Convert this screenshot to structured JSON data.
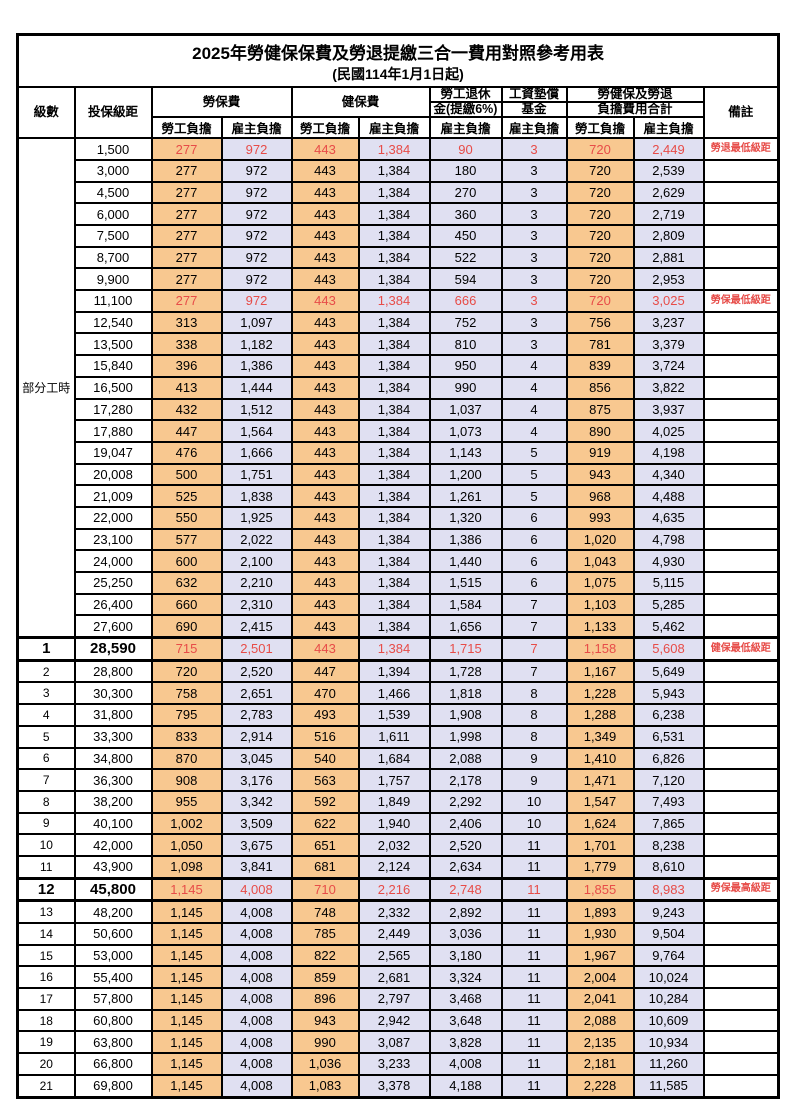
{
  "title": "2025年勞健保保費及勞退提繳三合一費用對照參考用表",
  "subtitle": "(民國114年1月1日起)",
  "header": {
    "level": "級數",
    "bracket": "投保級距",
    "labor_ins": "勞保費",
    "health_ins": "健保費",
    "pension_line1": "勞工退休",
    "pension_line2": "金(提繳6%)",
    "wage_fund_line1": "工資墊償",
    "wage_fund_line2": "基金",
    "total_line1": "勞健保及勞退",
    "total_line2": "負擔費用合計",
    "note": "備註",
    "employee": "勞工負擔",
    "employer": "雇主負擔"
  },
  "part_time_label": "部分工時",
  "colors": {
    "employee_bg": "#f8c890",
    "employer_bg": "#e0e0f2",
    "highlight_red": "#e74c48",
    "border": "#000000"
  },
  "row_fields": [
    "level",
    "bracket",
    "labor_employee",
    "labor_employer",
    "health_employee",
    "health_employer",
    "pension_employer",
    "fund_employer",
    "total_employee",
    "total_employer",
    "note",
    "flag"
  ],
  "rows": [
    [
      "",
      "1,500",
      "277",
      "972",
      "443",
      "1,384",
      "90",
      "3",
      "720",
      "2,449",
      "勞退最低級距",
      "red"
    ],
    [
      "",
      "3,000",
      "277",
      "972",
      "443",
      "1,384",
      "180",
      "3",
      "720",
      "2,539",
      "",
      ""
    ],
    [
      "",
      "4,500",
      "277",
      "972",
      "443",
      "1,384",
      "270",
      "3",
      "720",
      "2,629",
      "",
      ""
    ],
    [
      "",
      "6,000",
      "277",
      "972",
      "443",
      "1,384",
      "360",
      "3",
      "720",
      "2,719",
      "",
      ""
    ],
    [
      "",
      "7,500",
      "277",
      "972",
      "443",
      "1,384",
      "450",
      "3",
      "720",
      "2,809",
      "",
      ""
    ],
    [
      "",
      "8,700",
      "277",
      "972",
      "443",
      "1,384",
      "522",
      "3",
      "720",
      "2,881",
      "",
      ""
    ],
    [
      "",
      "9,900",
      "277",
      "972",
      "443",
      "1,384",
      "594",
      "3",
      "720",
      "2,953",
      "",
      ""
    ],
    [
      "",
      "11,100",
      "277",
      "972",
      "443",
      "1,384",
      "666",
      "3",
      "720",
      "3,025",
      "勞保最低級距",
      "red"
    ],
    [
      "",
      "12,540",
      "313",
      "1,097",
      "443",
      "1,384",
      "752",
      "3",
      "756",
      "3,237",
      "",
      ""
    ],
    [
      "",
      "13,500",
      "338",
      "1,182",
      "443",
      "1,384",
      "810",
      "3",
      "781",
      "3,379",
      "",
      ""
    ],
    [
      "",
      "15,840",
      "396",
      "1,386",
      "443",
      "1,384",
      "950",
      "4",
      "839",
      "3,724",
      "",
      ""
    ],
    [
      "",
      "16,500",
      "413",
      "1,444",
      "443",
      "1,384",
      "990",
      "4",
      "856",
      "3,822",
      "",
      ""
    ],
    [
      "",
      "17,280",
      "432",
      "1,512",
      "443",
      "1,384",
      "1,037",
      "4",
      "875",
      "3,937",
      "",
      ""
    ],
    [
      "",
      "17,880",
      "447",
      "1,564",
      "443",
      "1,384",
      "1,073",
      "4",
      "890",
      "4,025",
      "",
      ""
    ],
    [
      "",
      "19,047",
      "476",
      "1,666",
      "443",
      "1,384",
      "1,143",
      "5",
      "919",
      "4,198",
      "",
      ""
    ],
    [
      "",
      "20,008",
      "500",
      "1,751",
      "443",
      "1,384",
      "1,200",
      "5",
      "943",
      "4,340",
      "",
      ""
    ],
    [
      "",
      "21,009",
      "525",
      "1,838",
      "443",
      "1,384",
      "1,261",
      "5",
      "968",
      "4,488",
      "",
      ""
    ],
    [
      "",
      "22,000",
      "550",
      "1,925",
      "443",
      "1,384",
      "1,320",
      "6",
      "993",
      "4,635",
      "",
      ""
    ],
    [
      "",
      "23,100",
      "577",
      "2,022",
      "443",
      "1,384",
      "1,386",
      "6",
      "1,020",
      "4,798",
      "",
      ""
    ],
    [
      "",
      "24,000",
      "600",
      "2,100",
      "443",
      "1,384",
      "1,440",
      "6",
      "1,043",
      "4,930",
      "",
      ""
    ],
    [
      "",
      "25,250",
      "632",
      "2,210",
      "443",
      "1,384",
      "1,515",
      "6",
      "1,075",
      "5,115",
      "",
      ""
    ],
    [
      "",
      "26,400",
      "660",
      "2,310",
      "443",
      "1,384",
      "1,584",
      "7",
      "1,103",
      "5,285",
      "",
      ""
    ],
    [
      "",
      "27,600",
      "690",
      "2,415",
      "443",
      "1,384",
      "1,656",
      "7",
      "1,133",
      "5,462",
      "",
      ""
    ],
    [
      "1",
      "28,590",
      "715",
      "2,501",
      "443",
      "1,384",
      "1,715",
      "7",
      "1,158",
      "5,608",
      "健保最低級距",
      "red strong"
    ],
    [
      "2",
      "28,800",
      "720",
      "2,520",
      "447",
      "1,394",
      "1,728",
      "7",
      "1,167",
      "5,649",
      "",
      ""
    ],
    [
      "3",
      "30,300",
      "758",
      "2,651",
      "470",
      "1,466",
      "1,818",
      "8",
      "1,228",
      "5,943",
      "",
      ""
    ],
    [
      "4",
      "31,800",
      "795",
      "2,783",
      "493",
      "1,539",
      "1,908",
      "8",
      "1,288",
      "6,238",
      "",
      ""
    ],
    [
      "5",
      "33,300",
      "833",
      "2,914",
      "516",
      "1,611",
      "1,998",
      "8",
      "1,349",
      "6,531",
      "",
      ""
    ],
    [
      "6",
      "34,800",
      "870",
      "3,045",
      "540",
      "1,684",
      "2,088",
      "9",
      "1,410",
      "6,826",
      "",
      ""
    ],
    [
      "7",
      "36,300",
      "908",
      "3,176",
      "563",
      "1,757",
      "2,178",
      "9",
      "1,471",
      "7,120",
      "",
      ""
    ],
    [
      "8",
      "38,200",
      "955",
      "3,342",
      "592",
      "1,849",
      "2,292",
      "10",
      "1,547",
      "7,493",
      "",
      ""
    ],
    [
      "9",
      "40,100",
      "1,002",
      "3,509",
      "622",
      "1,940",
      "2,406",
      "10",
      "1,624",
      "7,865",
      "",
      ""
    ],
    [
      "10",
      "42,000",
      "1,050",
      "3,675",
      "651",
      "2,032",
      "2,520",
      "11",
      "1,701",
      "8,238",
      "",
      ""
    ],
    [
      "11",
      "43,900",
      "1,098",
      "3,841",
      "681",
      "2,124",
      "2,634",
      "11",
      "1,779",
      "8,610",
      "",
      ""
    ],
    [
      "12",
      "45,800",
      "1,145",
      "4,008",
      "710",
      "2,216",
      "2,748",
      "11",
      "1,855",
      "8,983",
      "勞保最高級距",
      "red strong"
    ],
    [
      "13",
      "48,200",
      "1,145",
      "4,008",
      "748",
      "2,332",
      "2,892",
      "11",
      "1,893",
      "9,243",
      "",
      ""
    ],
    [
      "14",
      "50,600",
      "1,145",
      "4,008",
      "785",
      "2,449",
      "3,036",
      "11",
      "1,930",
      "9,504",
      "",
      ""
    ],
    [
      "15",
      "53,000",
      "1,145",
      "4,008",
      "822",
      "2,565",
      "3,180",
      "11",
      "1,967",
      "9,764",
      "",
      ""
    ],
    [
      "16",
      "55,400",
      "1,145",
      "4,008",
      "859",
      "2,681",
      "3,324",
      "11",
      "2,004",
      "10,024",
      "",
      ""
    ],
    [
      "17",
      "57,800",
      "1,145",
      "4,008",
      "896",
      "2,797",
      "3,468",
      "11",
      "2,041",
      "10,284",
      "",
      ""
    ],
    [
      "18",
      "60,800",
      "1,145",
      "4,008",
      "943",
      "2,942",
      "3,648",
      "11",
      "2,088",
      "10,609",
      "",
      ""
    ],
    [
      "19",
      "63,800",
      "1,145",
      "4,008",
      "990",
      "3,087",
      "3,828",
      "11",
      "2,135",
      "10,934",
      "",
      ""
    ],
    [
      "20",
      "66,800",
      "1,145",
      "4,008",
      "1,036",
      "3,233",
      "4,008",
      "11",
      "2,181",
      "11,260",
      "",
      ""
    ],
    [
      "21",
      "69,800",
      "1,145",
      "4,008",
      "1,083",
      "3,378",
      "4,188",
      "11",
      "2,228",
      "11,585",
      "",
      ""
    ]
  ],
  "part_time_row_span": 23
}
